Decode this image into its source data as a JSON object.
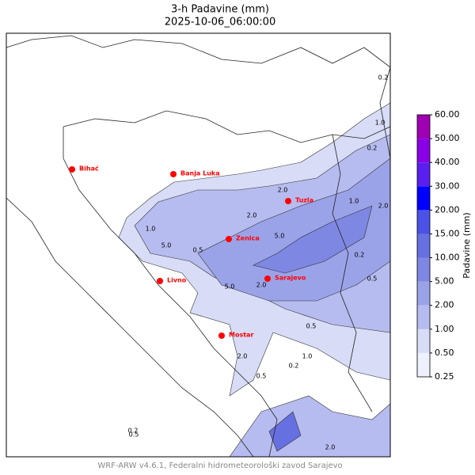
{
  "title": [
    "3-h Padavine (mm)",
    "2025-10-06_06:00:00"
  ],
  "cities": [
    {
      "name": "Bihać"
    },
    {
      "name": "Banja Luka"
    },
    {
      "name": "Tuzla"
    },
    {
      "name": "Zenica"
    },
    {
      "name": "Sarajevo"
    },
    {
      "name": "Livno"
    },
    {
      "name": "Mostar"
    }
  ],
  "contour_labels": [
    "0.2",
    "1.0",
    "0.2",
    "2.0",
    "1.0",
    "2.0",
    "5.0",
    "2.0",
    "5.0",
    "0.5",
    "1.0",
    "5.0",
    "2.0",
    "0.2",
    "0.5",
    "2.0",
    "1.0",
    "0.5",
    "0.2",
    "0.5",
    "2.0",
    "0.2",
    "0.5"
  ],
  "colorbar": {
    "label": "Padavine (mm)",
    "ticks": [
      {
        "value": 0.25,
        "label": "0.25"
      },
      {
        "value": 0.5,
        "label": "0.50"
      },
      {
        "value": 1,
        "label": "1.00"
      },
      {
        "value": 2,
        "label": "2.00"
      },
      {
        "value": 5,
        "label": "5.00"
      },
      {
        "value": 10,
        "label": "10.00"
      },
      {
        "value": 15,
        "label": "15.00"
      },
      {
        "value": 20,
        "label": "20.00"
      },
      {
        "value": 30,
        "label": "30.00"
      },
      {
        "value": 40,
        "label": "40.00"
      },
      {
        "value": 50,
        "label": "50.00"
      },
      {
        "value": 60,
        "label": "60.00"
      }
    ],
    "colors": [
      "#eef0fb",
      "#d8dcf6",
      "#b6bcef",
      "#9ba3e8",
      "#7e87e2",
      "#6770e0",
      "#4c52e6",
      "#0000ff",
      "#5a1ef0",
      "#8a00e6",
      "#a000b4"
    ]
  },
  "footer": "WRF-ARW v4.6.1, Federalni hidrometeorološki zavod Sarajevo"
}
